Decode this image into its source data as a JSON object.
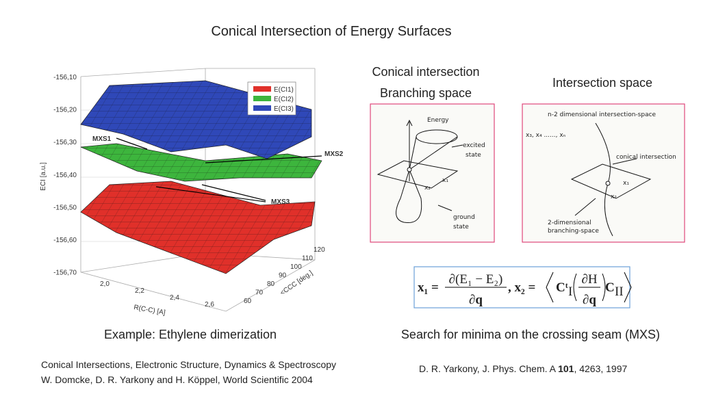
{
  "title": "Conical Intersection of Energy Surfaces",
  "plot": {
    "y_label": "ECI [a.u.]",
    "y_ticks": [
      "-156,10",
      "-156,20",
      "-156,30",
      "-156,40",
      "-156,50",
      "-156,60",
      "-156,70"
    ],
    "x_label": "R(C-C) [A]",
    "x_ticks": [
      "2,0",
      "2,2",
      "2,4",
      "2,6"
    ],
    "z_label": "<CCC [deg.]",
    "z_ticks": [
      "60",
      "70",
      "80",
      "90",
      "100",
      "110",
      "120"
    ],
    "legend": [
      "E(CI1)",
      "E(CI2)",
      "E(CI3)"
    ],
    "annotations": [
      "MXS1",
      "MXS2",
      "MXS3"
    ],
    "caption": "Example: Ethylene dimerization"
  },
  "branching": {
    "heading": [
      "Conical intersection",
      "Branching space"
    ],
    "labels": [
      "Energy",
      "excited",
      "state",
      "x₁",
      "x₂",
      "ground",
      "state"
    ]
  },
  "intersection": {
    "heading": "Intersection space",
    "labels": [
      "n-2 dimensional intersection-space",
      "x₃, x₄ ......, xₙ",
      "conical intersection",
      "x₁",
      "x₂",
      "2-dimensional",
      "branching-space"
    ]
  },
  "formula": [
    "x₁ =",
    "∂(E₁ − E₂)",
    "∂q",
    ", x₂ =",
    "Cᵗ",
    "I",
    "∂H",
    "∂q",
    "C",
    "II"
  ],
  "search": "Search for minima on the crossing seam (MXS)",
  "references": {
    "book": [
      "Conical Intersections, Electronic Structure, Dynamics & Spectroscopy",
      "W. Domcke, D. R. Yarkony and H. Köppel, World Scientific 2004"
    ],
    "paper": [
      "D. R. Yarkony, J. Phys. Chem. A ",
      "101",
      ", 4263, 1997"
    ]
  }
}
